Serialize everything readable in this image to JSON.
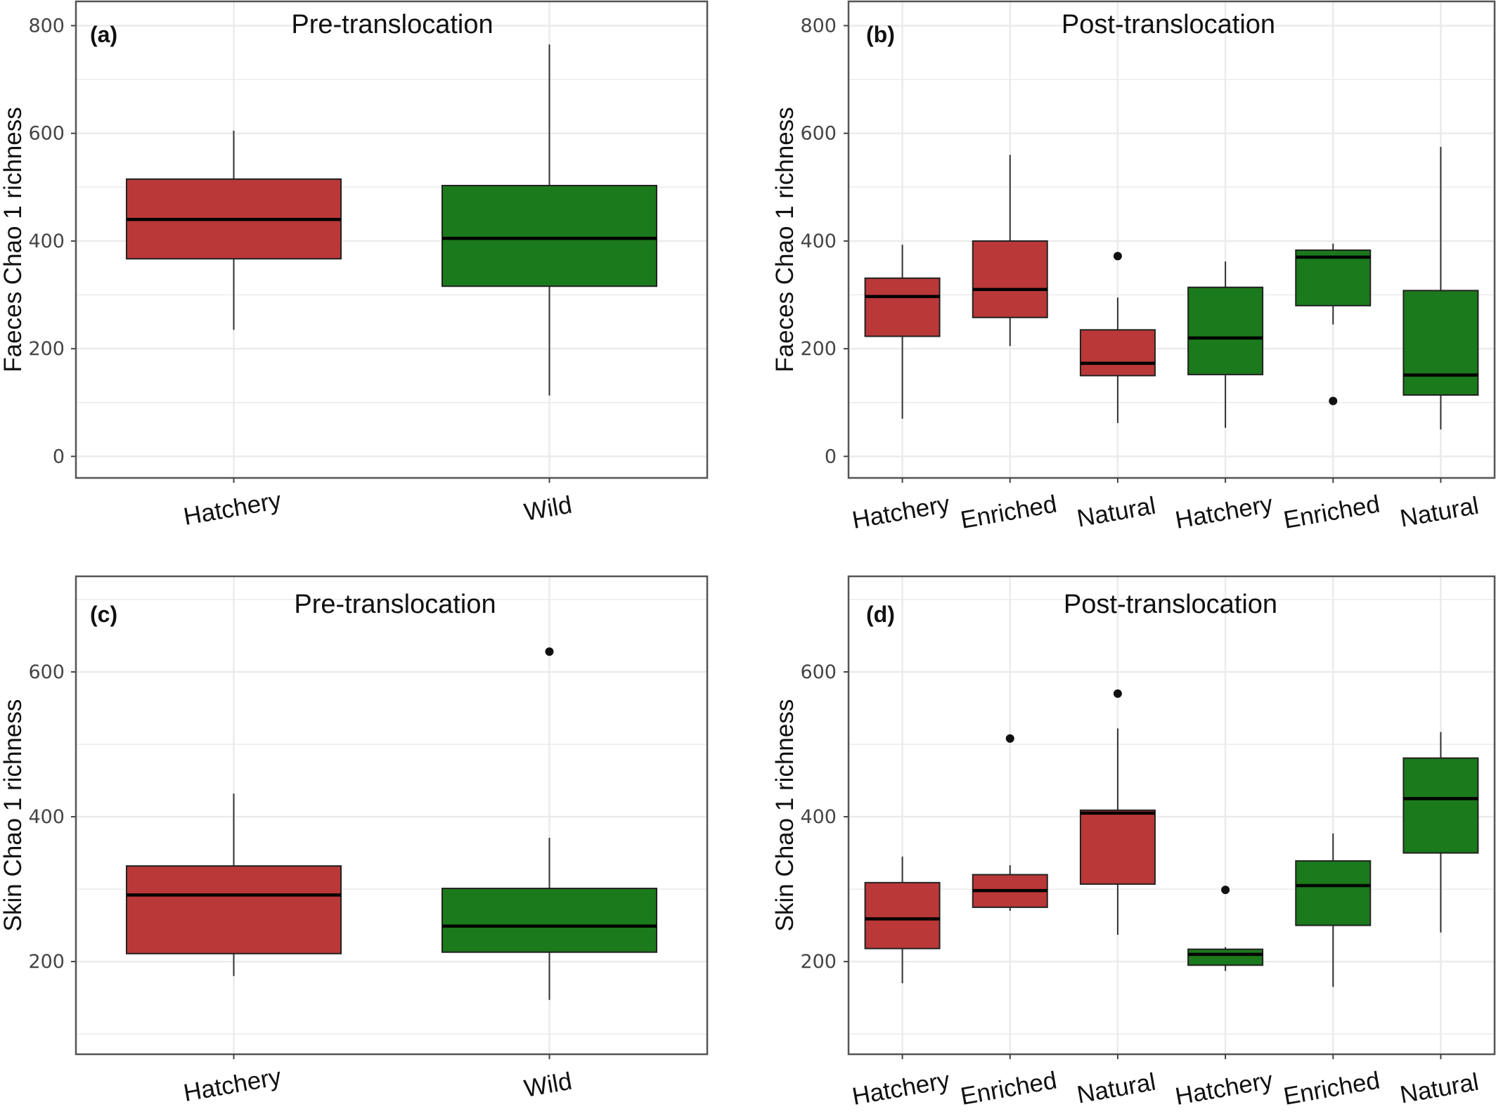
{
  "colors": {
    "red": "#bb3838",
    "green": "#1b7a1b",
    "grid": "#ebebeb",
    "panel_border": "#555555"
  },
  "chart_data": [
    {
      "type": "box",
      "tag": "(a)",
      "title": "Pre-translocation",
      "ylabel": "Faeces Chao 1 richness",
      "ylim": [
        -40,
        845
      ],
      "yticks": [
        0,
        200,
        400,
        600,
        800
      ],
      "categories": [
        "Hatchery",
        "Wild"
      ],
      "boxes": [
        {
          "category": "Hatchery",
          "color": "red",
          "whisker_low": 235,
          "q1": 367,
          "median": 440,
          "q3": 515,
          "whisker_high": 605,
          "outliers": []
        },
        {
          "category": "Wild",
          "color": "green",
          "whisker_low": 113,
          "q1": 316,
          "median": 405,
          "q3": 503,
          "whisker_high": 765,
          "outliers": []
        }
      ]
    },
    {
      "type": "box",
      "tag": "(b)",
      "title": "Post-translocation",
      "ylabel": "Faeces Chao 1 richness",
      "ylim": [
        -40,
        845
      ],
      "yticks": [
        0,
        200,
        400,
        600,
        800
      ],
      "categories": [
        "Hatchery",
        "Enriched",
        "Natural",
        "Hatchery",
        "Enriched",
        "Natural"
      ],
      "boxes": [
        {
          "category": "Hatchery",
          "color": "red",
          "whisker_low": 70,
          "q1": 223,
          "median": 297,
          "q3": 331,
          "whisker_high": 393,
          "outliers": []
        },
        {
          "category": "Enriched",
          "color": "red",
          "whisker_low": 205,
          "q1": 258,
          "median": 310,
          "q3": 400,
          "whisker_high": 560,
          "outliers": []
        },
        {
          "category": "Natural",
          "color": "red",
          "whisker_low": 62,
          "q1": 150,
          "median": 173,
          "q3": 235,
          "whisker_high": 295,
          "outliers": [
            372
          ]
        },
        {
          "category": "Hatchery",
          "color": "green",
          "whisker_low": 53,
          "q1": 152,
          "median": 220,
          "q3": 314,
          "whisker_high": 362,
          "outliers": []
        },
        {
          "category": "Enriched",
          "color": "green",
          "whisker_low": 245,
          "q1": 280,
          "median": 370,
          "q3": 383,
          "whisker_high": 395,
          "outliers": [
            103
          ]
        },
        {
          "category": "Natural",
          "color": "green",
          "whisker_low": 50,
          "q1": 114,
          "median": 151,
          "q3": 308,
          "whisker_high": 575,
          "outliers": []
        }
      ]
    },
    {
      "type": "box",
      "tag": "(c)",
      "title": "Pre-translocation",
      "ylabel": "Skin Chao 1 richness",
      "ylim": [
        72,
        732
      ],
      "yticks": [
        200,
        400,
        600
      ],
      "categories": [
        "Hatchery",
        "Wild"
      ],
      "boxes": [
        {
          "category": "Hatchery",
          "color": "red",
          "whisker_low": 180,
          "q1": 211,
          "median": 292,
          "q3": 332,
          "whisker_high": 432,
          "outliers": []
        },
        {
          "category": "Wild",
          "color": "green",
          "whisker_low": 147,
          "q1": 213,
          "median": 249,
          "q3": 301,
          "whisker_high": 371,
          "outliers": [
            628
          ]
        }
      ]
    },
    {
      "type": "box",
      "tag": "(d)",
      "title": "Post-translocation",
      "ylabel": "Skin Chao 1 richness",
      "ylim": [
        72,
        732
      ],
      "yticks": [
        200,
        400,
        600
      ],
      "categories": [
        "Hatchery",
        "Enriched",
        "Natural",
        "Hatchery",
        "Enriched",
        "Natural"
      ],
      "boxes": [
        {
          "category": "Hatchery",
          "color": "red",
          "whisker_low": 170,
          "q1": 218,
          "median": 259,
          "q3": 309,
          "whisker_high": 345,
          "outliers": []
        },
        {
          "category": "Enriched",
          "color": "red",
          "whisker_low": 270,
          "q1": 275,
          "median": 298,
          "q3": 320,
          "whisker_high": 333,
          "outliers": [
            508
          ]
        },
        {
          "category": "Natural",
          "color": "red",
          "whisker_low": 237,
          "q1": 307,
          "median": 405,
          "q3": 409,
          "whisker_high": 522,
          "outliers": [
            570
          ]
        },
        {
          "category": "Hatchery",
          "color": "green",
          "whisker_low": 187,
          "q1": 195,
          "median": 210,
          "q3": 217,
          "whisker_high": 220,
          "outliers": [
            299
          ]
        },
        {
          "category": "Enriched",
          "color": "green",
          "whisker_low": 165,
          "q1": 250,
          "median": 305,
          "q3": 339,
          "whisker_high": 377,
          "outliers": []
        },
        {
          "category": "Natural",
          "color": "green",
          "whisker_low": 240,
          "q1": 350,
          "median": 425,
          "q3": 481,
          "whisker_high": 517,
          "outliers": []
        }
      ]
    }
  ]
}
